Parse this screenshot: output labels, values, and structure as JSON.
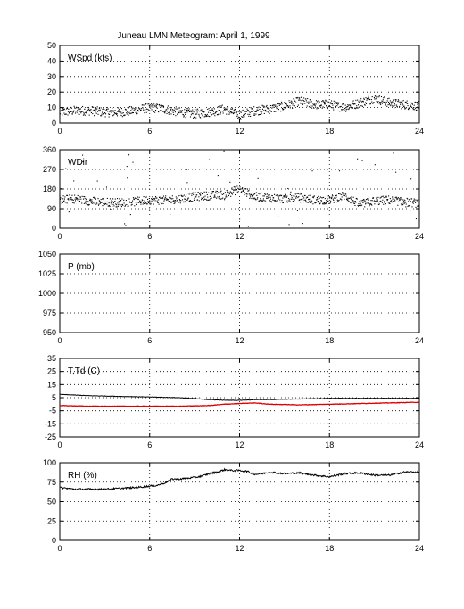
{
  "title": "Juneau LMN Meteogram:      April  1, 1999",
  "chart_data": [
    {
      "type": "scatter",
      "label": "WSpd (kts)",
      "xlim": [
        0,
        24
      ],
      "ylim": [
        0,
        50
      ],
      "xticks": [
        0,
        6,
        12,
        18,
        24
      ],
      "yticks": [
        0,
        10,
        20,
        30,
        40,
        50
      ],
      "grid": true,
      "series": [
        {
          "color": "#000000",
          "x": [
            0,
            1,
            2,
            3,
            4,
            5,
            6,
            7,
            8,
            9,
            10,
            11,
            12,
            13,
            14,
            15,
            16,
            17,
            18,
            19,
            20,
            21,
            22,
            23,
            24
          ],
          "y": [
            7,
            8,
            8,
            7,
            7,
            8,
            10,
            9,
            7,
            6,
            7,
            9,
            5,
            8,
            9,
            11,
            14,
            12,
            12,
            10,
            13,
            16,
            13,
            12,
            11
          ]
        }
      ]
    },
    {
      "type": "scatter",
      "label": "WDir",
      "xlim": [
        0,
        24
      ],
      "ylim": [
        0,
        360
      ],
      "xticks": [
        0,
        6,
        12,
        18,
        24
      ],
      "yticks": [
        0,
        90,
        180,
        270,
        360
      ],
      "grid": true,
      "series": [
        {
          "color": "#000000",
          "x": [
            0,
            1,
            2,
            3,
            4,
            5,
            6,
            7,
            8,
            9,
            10,
            11,
            12,
            13,
            14,
            15,
            16,
            17,
            18,
            19,
            20,
            21,
            22,
            23,
            24
          ],
          "y": [
            130,
            135,
            125,
            120,
            118,
            122,
            130,
            128,
            135,
            145,
            150,
            155,
            180,
            145,
            140,
            135,
            140,
            130,
            130,
            150,
            110,
            125,
            130,
            120,
            115
          ]
        }
      ]
    },
    {
      "type": "scatter",
      "label": "P (mb)",
      "xlim": [
        0,
        24
      ],
      "ylim": [
        950,
        1050
      ],
      "xticks": [
        0,
        6,
        12,
        18,
        24
      ],
      "yticks": [
        950,
        975,
        1000,
        1025,
        1050
      ],
      "grid": true,
      "series": []
    },
    {
      "type": "line",
      "label": "T,Td (C)",
      "xlim": [
        0,
        24
      ],
      "ylim": [
        -25,
        35
      ],
      "xticks": [
        0,
        6,
        12,
        18,
        24
      ],
      "yticks": [
        -25,
        -15,
        -5,
        5,
        15,
        25,
        35
      ],
      "grid": true,
      "series": [
        {
          "color": "#000000",
          "x": [
            0,
            2,
            4,
            6,
            8,
            10,
            11,
            12,
            13,
            14,
            16,
            18,
            20,
            22,
            24
          ],
          "y": [
            7.5,
            6.5,
            6,
            5.5,
            5,
            3.5,
            3,
            3,
            3.5,
            3.5,
            4,
            4.5,
            4.5,
            4.5,
            4.5
          ]
        },
        {
          "color": "#dd0000",
          "x": [
            0,
            2,
            4,
            6,
            8,
            10,
            11,
            12,
            13,
            14,
            16,
            18,
            20,
            22,
            24
          ],
          "y": [
            -1,
            -1.5,
            -1.5,
            -1.5,
            -1.5,
            -1,
            0,
            0.5,
            1,
            0,
            -0.5,
            0,
            0.5,
            1,
            1.5
          ]
        }
      ]
    },
    {
      "type": "line",
      "label": "RH (%)",
      "xlim": [
        0,
        24
      ],
      "ylim": [
        0,
        100
      ],
      "xticks": [
        0,
        6,
        12,
        18,
        24
      ],
      "yticks": [
        0,
        25,
        50,
        75,
        100
      ],
      "grid": true,
      "series": [
        {
          "color": "#000000",
          "x": [
            0,
            1,
            2,
            3,
            4,
            5,
            6,
            6.5,
            7,
            7.5,
            8,
            8.5,
            9,
            9.5,
            10,
            10.5,
            11,
            11.5,
            12,
            12.5,
            13,
            13.5,
            14,
            15,
            16,
            17,
            18,
            19,
            20,
            21,
            22,
            23,
            24
          ],
          "y": [
            68,
            66,
            66,
            66,
            67,
            68,
            70,
            71,
            74,
            79,
            79,
            80,
            81,
            83,
            86,
            88,
            91,
            90,
            90,
            89,
            85,
            86,
            88,
            86,
            87,
            84,
            82,
            86,
            87,
            84,
            84,
            88,
            88
          ]
        }
      ]
    }
  ]
}
